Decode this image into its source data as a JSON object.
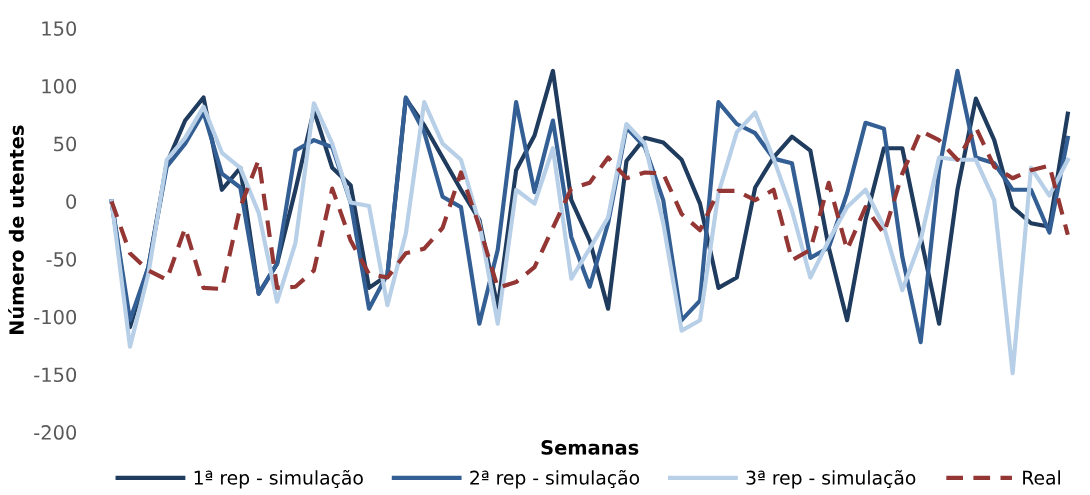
{
  "chart_data": {
    "type": "line",
    "xlabel": "Semanas",
    "ylabel": "Número de utentes",
    "categories": [
      null,
      null,
      null,
      null,
      null,
      null,
      null,
      null,
      null,
      null,
      null,
      null,
      null,
      null,
      null,
      null,
      null,
      null,
      null,
      null,
      null,
      null,
      null,
      null,
      null,
      null,
      null,
      null,
      null,
      null,
      null,
      null,
      null,
      null,
      null,
      null,
      null,
      null,
      null,
      null,
      null,
      null,
      null,
      null,
      null,
      null,
      null,
      null,
      null,
      null,
      null,
      null,
      null
    ],
    "ylim": [
      -200,
      150
    ],
    "yticks": [
      -200,
      -150,
      -100,
      -50,
      0,
      50,
      100,
      150
    ],
    "grid": false,
    "legend": "bottom",
    "marker": "none",
    "series": [
      {
        "name": "1ª rep - simulação",
        "color": "#1f3b5e",
        "line_style": "solid",
        "values": [
          0,
          -109,
          -57,
          33,
          70,
          90,
          10,
          29,
          -80,
          -54,
          10,
          79,
          29,
          14,
          -75,
          -64,
          89,
          66,
          38,
          10,
          -16,
          -92,
          27,
          57,
          113,
          1,
          -34,
          -93,
          35,
          55,
          51,
          36,
          -2,
          -75,
          -66,
          12,
          38,
          56,
          44,
          -40,
          -103,
          -16,
          46,
          46,
          -31,
          -106,
          10,
          89,
          53,
          -5,
          -19,
          -22,
          76
        ]
      },
      {
        "name": "2ª rep - simulação",
        "color": "#335f94",
        "line_style": "solid",
        "values": [
          0,
          -103,
          -57,
          30,
          50,
          77,
          24,
          12,
          -80,
          -54,
          44,
          53,
          47,
          -1,
          -93,
          -63,
          90,
          60,
          4,
          -5,
          -106,
          -42,
          86,
          8,
          70,
          -31,
          -74,
          -19,
          64,
          47,
          1,
          -103,
          -86,
          86,
          67,
          59,
          37,
          33,
          -49,
          -40,
          7,
          68,
          63,
          -48,
          -122,
          27,
          113,
          38,
          33,
          10,
          10,
          -27,
          55
        ]
      },
      {
        "name": "3ª rep - simulação",
        "color": "#b8cfe8",
        "line_style": "solid",
        "values": [
          0,
          -126,
          -63,
          36,
          55,
          82,
          42,
          29,
          -10,
          -87,
          -36,
          85,
          50,
          -1,
          -4,
          -90,
          -28,
          86,
          50,
          36,
          -19,
          -106,
          10,
          -2,
          46,
          -67,
          -41,
          -14,
          67,
          50,
          -19,
          -112,
          -103,
          7,
          60,
          77,
          37,
          -8,
          -66,
          -34,
          -5,
          10,
          -22,
          -77,
          -34,
          38,
          36,
          36,
          1,
          -149,
          29,
          5,
          36
        ]
      },
      {
        "name": "Real",
        "color": "#943634",
        "line_style": "dashed",
        "values": [
          0,
          -45,
          -60,
          -68,
          -23,
          -75,
          -76,
          -5,
          36,
          -75,
          -74,
          -60,
          11,
          -34,
          -63,
          -66,
          -45,
          -41,
          -23,
          25,
          -22,
          -75,
          -70,
          -57,
          -23,
          11,
          16,
          38,
          20,
          25,
          24,
          -11,
          -25,
          9,
          9,
          1,
          10,
          -51,
          -42,
          16,
          -42,
          -5,
          -28,
          24,
          61,
          53,
          36,
          64,
          30,
          20,
          27,
          31,
          -29
        ]
      }
    ]
  }
}
